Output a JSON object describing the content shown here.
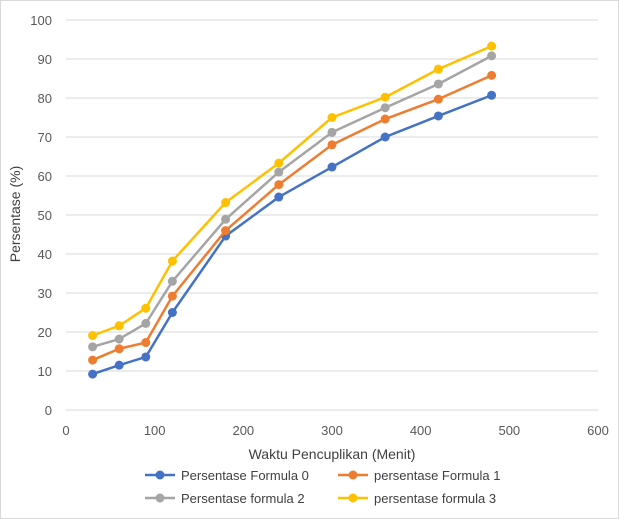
{
  "chart_data": {
    "type": "line",
    "xlabel": "Waktu Pencuplikan (Menit)",
    "ylabel": "Persentase (%)",
    "xlim": [
      0,
      600
    ],
    "ylim": [
      0,
      100
    ],
    "xticks": [
      0,
      100,
      200,
      300,
      400,
      500,
      600
    ],
    "yticks": [
      0,
      10,
      20,
      30,
      40,
      50,
      60,
      70,
      80,
      90,
      100
    ],
    "grid": "horizontal",
    "legend_position": "bottom",
    "x": [
      30,
      60,
      90,
      120,
      180,
      240,
      300,
      360,
      420,
      480
    ],
    "series": [
      {
        "name": "Persentase Formula 0",
        "color": "#4472C4",
        "values": [
          9.2,
          11.5,
          13.6,
          25.0,
          44.6,
          54.6,
          62.3,
          70.0,
          75.4,
          80.7
        ]
      },
      {
        "name": "persentase Formula 1",
        "color": "#ED7D31",
        "values": [
          12.8,
          15.7,
          17.3,
          29.2,
          46.0,
          57.8,
          68.0,
          74.6,
          79.7,
          85.8
        ]
      },
      {
        "name": "Persentase formula 2",
        "color": "#A5A5A5",
        "values": [
          16.2,
          18.2,
          22.2,
          33.0,
          48.9,
          61.0,
          71.2,
          77.5,
          83.6,
          90.8
        ]
      },
      {
        "name": "persentase formula 3",
        "color": "#FFC000",
        "values": [
          19.1,
          21.6,
          26.1,
          38.2,
          53.2,
          63.3,
          75.0,
          80.2,
          87.4,
          93.3
        ]
      }
    ]
  }
}
